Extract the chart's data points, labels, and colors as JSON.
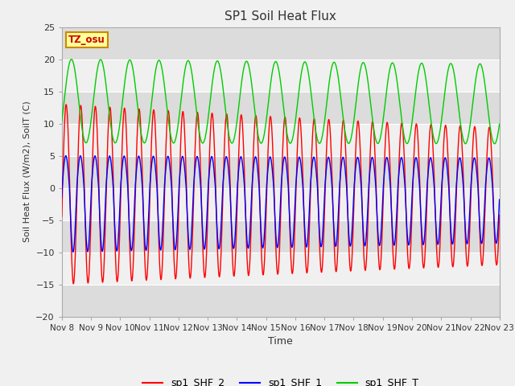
{
  "title": "SP1 Soil Heat Flux",
  "xlabel": "Time",
  "ylabel": "Soil Heat Flux (W/m2), SoilT (C)",
  "ylim": [
    -20,
    25
  ],
  "yticks": [
    -20,
    -15,
    -10,
    -5,
    0,
    5,
    10,
    15,
    20,
    25
  ],
  "xtick_labels": [
    "Nov 8",
    "Nov 9",
    "Nov 10",
    "Nov 11",
    "Nov 12",
    "Nov 13",
    "Nov 14",
    "Nov 15",
    "Nov 16",
    "Nov 17",
    "Nov 18",
    "Nov 19",
    "Nov 20",
    "Nov 21",
    "Nov 22",
    "Nov 23"
  ],
  "tz_label": "TZ_osu",
  "legend": [
    {
      "label": "sp1_SHF_2",
      "color": "#FF0000"
    },
    {
      "label": "sp1_SHF_1",
      "color": "#0000FF"
    },
    {
      "label": "sp1_SHF_T",
      "color": "#00CC00"
    }
  ],
  "fig_bg_color": "#F0F0F0",
  "plot_bg_color": "#F0F0F0",
  "band_color_dark": "#DCDCDC",
  "band_color_light": "#F0F0F0",
  "grid_color": "#FFFFFF",
  "shf2_color": "#FF0000",
  "shf1_color": "#0000FF",
  "shfT_color": "#00CC00"
}
